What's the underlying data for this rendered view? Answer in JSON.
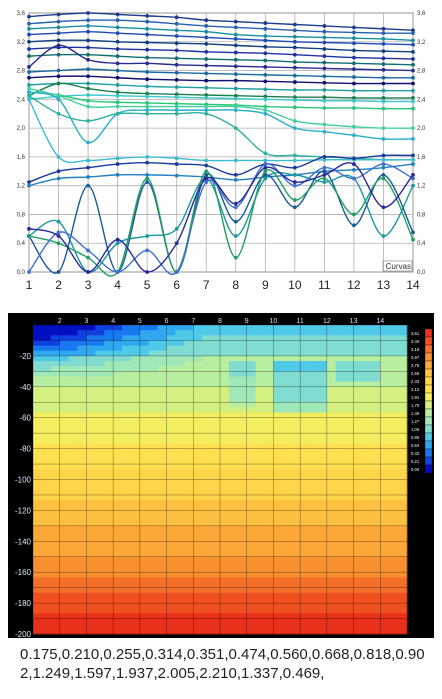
{
  "chart_data": [
    {
      "type": "line",
      "legend_label": "Curvas",
      "x": [
        1,
        2,
        3,
        4,
        5,
        6,
        7,
        8,
        9,
        10,
        11,
        12,
        13,
        14
      ],
      "x_ticks": [
        "1",
        "2",
        "3",
        "4",
        "5",
        "6",
        "7",
        "8",
        "9",
        "10",
        "11",
        "12",
        "13",
        "14"
      ],
      "y_ticks": [
        "0,0",
        "0,4",
        "0,8",
        "1,2",
        "1,6",
        "2,0",
        "2,4",
        "2,8",
        "3,2",
        "3,6"
      ],
      "ylim": [
        0,
        3.6
      ],
      "grid": true,
      "series": [
        {
          "color": "#1e3c8c",
          "values": [
            3.55,
            3.58,
            3.6,
            3.58,
            3.56,
            3.54,
            3.5,
            3.48,
            3.46,
            3.44,
            3.42,
            3.4,
            3.38,
            3.36
          ]
        },
        {
          "color": "#2860b0",
          "values": [
            3.45,
            3.48,
            3.5,
            3.5,
            3.48,
            3.45,
            3.42,
            3.4,
            3.38,
            3.36,
            3.34,
            3.33,
            3.32,
            3.32
          ]
        },
        {
          "color": "#1a8fa0",
          "values": [
            3.38,
            3.4,
            3.42,
            3.4,
            3.38,
            3.36,
            3.34,
            3.3,
            3.28,
            3.27,
            3.26,
            3.25,
            3.24,
            3.22
          ]
        },
        {
          "color": "#1e4ab4",
          "values": [
            3.3,
            3.32,
            3.34,
            3.32,
            3.3,
            3.28,
            3.26,
            3.24,
            3.22,
            3.2,
            3.19,
            3.18,
            3.17,
            3.16
          ]
        },
        {
          "color": "#104080",
          "values": [
            3.2,
            3.22,
            3.22,
            3.2,
            3.19,
            3.18,
            3.17,
            3.15,
            3.13,
            3.12,
            3.1,
            3.08,
            3.07,
            3.06
          ]
        },
        {
          "color": "#2030a0",
          "values": [
            3.1,
            3.12,
            3.12,
            3.1,
            3.09,
            3.08,
            3.06,
            3.05,
            3.04,
            3.02,
            3.0,
            2.98,
            2.97,
            2.96
          ]
        },
        {
          "color": "#0f6e6e",
          "values": [
            3.0,
            3.02,
            3.02,
            3.0,
            2.98,
            2.97,
            2.96,
            2.95,
            2.94,
            2.92,
            2.91,
            2.9,
            2.89,
            2.88
          ]
        },
        {
          "color": "#2a2a90",
          "values": [
            2.85,
            3.15,
            2.95,
            2.9,
            2.9,
            2.88,
            2.87,
            2.86,
            2.85,
            2.84,
            2.83,
            2.82,
            2.81,
            2.8
          ]
        },
        {
          "color": "#1a6aa0",
          "values": [
            2.78,
            2.8,
            2.82,
            2.8,
            2.78,
            2.77,
            2.76,
            2.75,
            2.74,
            2.73,
            2.72,
            2.71,
            2.7,
            2.7
          ]
        },
        {
          "color": "#101070",
          "values": [
            2.7,
            2.72,
            2.72,
            2.7,
            2.68,
            2.67,
            2.66,
            2.66,
            2.65,
            2.64,
            2.63,
            2.62,
            2.62,
            2.62
          ]
        },
        {
          "color": "#22a0a0",
          "values": [
            2.6,
            2.62,
            2.62,
            2.6,
            2.58,
            2.57,
            2.56,
            2.55,
            2.54,
            2.53,
            2.53,
            2.52,
            2.52,
            2.52
          ]
        },
        {
          "color": "#1a8050",
          "values": [
            2.45,
            2.62,
            2.55,
            2.5,
            2.48,
            2.47,
            2.46,
            2.45,
            2.44,
            2.43,
            2.43,
            2.42,
            2.42,
            2.42
          ]
        },
        {
          "color": "#3cc8c8",
          "values": [
            2.4,
            2.44,
            2.46,
            2.45,
            2.44,
            2.43,
            2.42,
            2.41,
            2.4,
            2.39,
            2.38,
            2.38,
            2.37,
            2.37
          ]
        },
        {
          "color": "#28c878",
          "values": [
            2.5,
            2.46,
            2.38,
            2.36,
            2.35,
            2.34,
            2.33,
            2.32,
            2.3,
            2.29,
            2.28,
            2.28,
            2.27,
            2.27
          ]
        },
        {
          "color": "#40d0a0",
          "values": [
            2.55,
            2.45,
            2.3,
            2.3,
            2.3,
            2.3,
            2.3,
            2.3,
            2.25,
            2.1,
            2.05,
            2.02,
            2.0,
            2.0
          ]
        },
        {
          "color": "#2ab0c8",
          "values": [
            2.5,
            2.4,
            1.8,
            2.2,
            2.25,
            2.25,
            2.25,
            2.25,
            2.2,
            2.0,
            1.95,
            1.9,
            1.85,
            1.85
          ]
        },
        {
          "color": "#30b0a0",
          "values": [
            2.45,
            2.2,
            2.1,
            2.2,
            2.2,
            2.2,
            2.2,
            2.0,
            1.65,
            1.62,
            1.6,
            1.58,
            1.56,
            1.56
          ]
        },
        {
          "color": "#3cbcd0",
          "values": [
            2.4,
            1.6,
            1.55,
            1.58,
            1.6,
            1.58,
            1.55,
            1.55,
            1.55,
            1.55,
            1.56,
            1.56,
            1.56,
            1.56
          ]
        },
        {
          "color": "#1a3c9c",
          "values": [
            1.25,
            1.4,
            1.45,
            1.5,
            1.52,
            1.5,
            1.48,
            1.35,
            1.5,
            1.45,
            1.6,
            1.58,
            1.62,
            1.62
          ]
        },
        {
          "color": "#2080c0",
          "values": [
            1.2,
            1.3,
            1.32,
            1.35,
            1.35,
            1.34,
            1.32,
            1.28,
            1.32,
            1.35,
            1.4,
            1.42,
            1.45,
            1.5
          ]
        },
        {
          "color": "#1a9aa0",
          "values": [
            0.5,
            0.7,
            0.0,
            0.4,
            0.5,
            0.6,
            1.3,
            0.5,
            1.3,
            1.35,
            1.25,
            1.3,
            0.5,
            1.2
          ]
        },
        {
          "color": "#1a5a9a",
          "values": [
            0.5,
            0.0,
            1.2,
            0.0,
            1.25,
            0.0,
            1.35,
            0.7,
            1.35,
            0.9,
            1.4,
            0.65,
            1.35,
            0.55
          ]
        },
        {
          "color": "#20a060",
          "values": [
            0.5,
            0.4,
            0.2,
            0.0,
            1.3,
            0.0,
            1.4,
            0.2,
            1.4,
            1.0,
            1.3,
            0.8,
            1.3,
            0.45
          ]
        },
        {
          "color": "#4070d0",
          "values": [
            0.0,
            0.55,
            0.3,
            0.0,
            0.3,
            0.0,
            1.25,
            0.9,
            1.5,
            1.2,
            1.45,
            1.3,
            1.5,
            1.3
          ]
        },
        {
          "color": "#2a2a9a",
          "values": [
            0.6,
            0.5,
            0.0,
            0.45,
            0.0,
            0.4,
            1.3,
            0.95,
            1.45,
            1.25,
            1.35,
            1.5,
            0.9,
            1.35
          ]
        }
      ]
    },
    {
      "type": "heatmap",
      "x_ticks": [
        "2",
        "3",
        "4",
        "5",
        "6",
        "7",
        "8",
        "9",
        "10",
        "11",
        "12",
        "13",
        "14"
      ],
      "y_ticks": [
        "-20",
        "-40",
        "-60",
        "-80",
        "-100",
        "-120",
        "-140",
        "-160",
        "-180",
        "-200"
      ],
      "legend_levels": [
        "3,61",
        "3,40",
        "3,18",
        "2,97",
        "2,76",
        "2,55",
        "2,33",
        "2,12",
        "1,91",
        "1,70",
        "1,49",
        "1,27",
        "1,06",
        "0,85",
        "0,64",
        "0,42",
        "0,21",
        "0,00"
      ],
      "legend_colors": [
        "#e8301a",
        "#f05020",
        "#f47028",
        "#f89030",
        "#fba838",
        "#fdc040",
        "#fed448",
        "#fee050",
        "#f2ee60",
        "#d4f080",
        "#b8eea0",
        "#a0e8b8",
        "#80dcd0",
        "#50c8e8",
        "#30a8f0",
        "#1878f0",
        "#1040e0",
        "#0010c0"
      ]
    }
  ],
  "data_text": "0.175,0.210,0.255,0.314,0.351,0.474,0.560,0.668,0.818,0.902,1.249,1.597,1.937,2.005,2.210,1.337,0.469,"
}
